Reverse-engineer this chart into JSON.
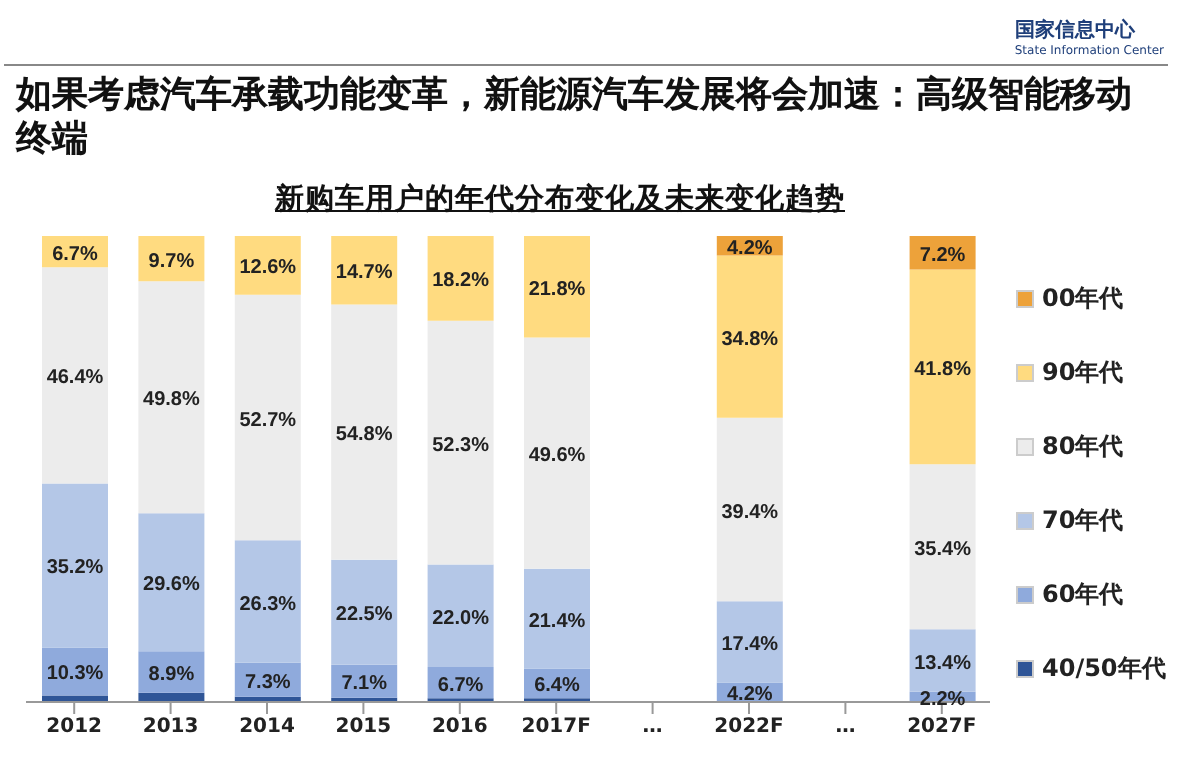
{
  "chart_data": {
    "type": "bar",
    "stacked": true,
    "title": "如果考虑汽车承载功能变革，新能源汽车发展将会加速：高级智能移动终端",
    "subtitle": "新购车用户的年代分布变化及未来变化趋势",
    "annotations": [
      "国家信息中心",
      "State Information Center"
    ],
    "legend": "right",
    "categories": [
      "2012",
      "2013",
      "2014",
      "2015",
      "2016",
      "2017F",
      "…",
      "2022F",
      "…",
      "2027F"
    ],
    "series": [
      {
        "name": "40/50年代",
        "color": "#2f5597",
        "values": [
          1.4,
          2.0,
          1.1,
          0.9,
          0.8,
          0.8,
          null,
          null,
          null,
          null
        ]
      },
      {
        "name": "60年代",
        "color": "#8faadc",
        "values": [
          10.3,
          8.9,
          7.3,
          7.1,
          6.7,
          6.4,
          null,
          4.2,
          null,
          2.2
        ],
        "value_labels": [
          "10.3%",
          "8.9%",
          "7.3%",
          "7.1%",
          "6.7%",
          "6.4%",
          null,
          "4.2%",
          null,
          "2.2%"
        ]
      },
      {
        "name": "70年代",
        "color": "#b4c7e7",
        "values": [
          35.2,
          29.6,
          26.3,
          22.5,
          22.0,
          21.4,
          null,
          17.4,
          null,
          13.4
        ],
        "value_labels": [
          "35.2%",
          "29.6%",
          "26.3%",
          "22.5%",
          "22.0%",
          "21.4%",
          null,
          "17.4%",
          null,
          "13.4%"
        ]
      },
      {
        "name": "80年代",
        "color": "#ececec",
        "values": [
          46.4,
          49.8,
          52.7,
          54.8,
          52.3,
          49.6,
          null,
          39.4,
          null,
          35.4
        ],
        "value_labels": [
          "46.4%",
          "49.8%",
          "52.7%",
          "54.8%",
          "52.3%",
          "49.6%",
          null,
          "39.4%",
          null,
          "35.4%"
        ]
      },
      {
        "name": "90年代",
        "color": "#ffdb80",
        "values": [
          6.7,
          9.7,
          12.6,
          14.7,
          18.2,
          21.8,
          null,
          34.8,
          null,
          41.8
        ],
        "value_labels": [
          "6.7%",
          "9.7%",
          "12.6%",
          "14.7%",
          "18.2%",
          "21.8%",
          null,
          "34.8%",
          null,
          "41.8%"
        ]
      },
      {
        "name": "00年代",
        "color": "#eda23a",
        "values": [
          null,
          null,
          null,
          null,
          null,
          null,
          null,
          4.2,
          null,
          7.2
        ],
        "value_labels": [
          null,
          null,
          null,
          null,
          null,
          null,
          null,
          "4.2%",
          null,
          "7.2%"
        ]
      }
    ]
  }
}
